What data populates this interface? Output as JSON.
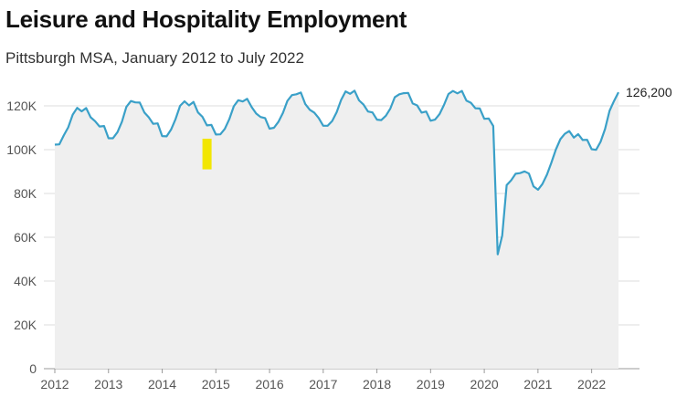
{
  "chart_data": {
    "type": "area",
    "title": "Leisure and Hospitality Employment",
    "subtitle": "Pittsburgh MSA, January 2012 to July 2022",
    "xlabel": "",
    "ylabel": "",
    "x_tick_labels": [
      "2012",
      "2013",
      "2014",
      "2015",
      "2016",
      "2017",
      "2018",
      "2019",
      "2020",
      "2021",
      "2022"
    ],
    "y_tick_labels": [
      "0",
      "20K",
      "40K",
      "60K",
      "80K",
      "100K",
      "120K"
    ],
    "ylim": [
      0,
      130000
    ],
    "xlim": [
      2012.0,
      2022.5
    ],
    "grid": "horizontal",
    "legend": "none",
    "line_color": "#3aa0c8",
    "area_color": "#efefef",
    "annotation_color": "#f2e600",
    "annotation_range": {
      "x": [
        2014.75,
        2014.92
      ],
      "y": [
        91000,
        105000
      ]
    },
    "end_label": "126,200",
    "series": [
      {
        "x": [
          2012.0,
          2012.083,
          2012.167,
          2012.25,
          2012.333,
          2012.417,
          2012.5,
          2012.583,
          2012.667,
          2012.75,
          2012.833,
          2012.917,
          2013.0,
          2013.083,
          2013.167,
          2013.25,
          2013.333,
          2013.417,
          2013.5,
          2013.583,
          2013.667,
          2013.75,
          2013.833,
          2013.917,
          2014.0,
          2014.083,
          2014.167,
          2014.25,
          2014.333,
          2014.417,
          2014.5,
          2014.583,
          2014.667,
          2014.75,
          2014.833,
          2014.917,
          2015.0,
          2015.083,
          2015.167,
          2015.25,
          2015.333,
          2015.417,
          2015.5,
          2015.583,
          2015.667,
          2015.75,
          2015.833,
          2015.917,
          2016.0,
          2016.083,
          2016.167,
          2016.25,
          2016.333,
          2016.417,
          2016.5,
          2016.583,
          2016.667,
          2016.75,
          2016.833,
          2016.917,
          2017.0,
          2017.083,
          2017.167,
          2017.25,
          2017.333,
          2017.417,
          2017.5,
          2017.583,
          2017.667,
          2017.75,
          2017.833,
          2017.917,
          2018.0,
          2018.083,
          2018.167,
          2018.25,
          2018.333,
          2018.417,
          2018.5,
          2018.583,
          2018.667,
          2018.75,
          2018.833,
          2018.917,
          2019.0,
          2019.083,
          2019.167,
          2019.25,
          2019.333,
          2019.417,
          2019.5,
          2019.583,
          2019.667,
          2019.75,
          2019.833,
          2019.917,
          2020.0,
          2020.083,
          2020.167,
          2020.25,
          2020.333,
          2020.417,
          2020.5,
          2020.583,
          2020.667,
          2020.75,
          2020.833,
          2020.917,
          2021.0,
          2021.083,
          2021.167,
          2021.25,
          2021.333,
          2021.417,
          2021.5,
          2021.583,
          2021.667,
          2021.75,
          2021.833,
          2021.917,
          2022.0,
          2022.083,
          2022.167,
          2022.25,
          2022.333,
          2022.417,
          2022.5
        ],
        "values": [
          102300,
          102400,
          106500,
          110200,
          116000,
          119100,
          117500,
          119000,
          114800,
          113000,
          110600,
          110800,
          105200,
          105200,
          108000,
          112800,
          119500,
          122200,
          121600,
          121500,
          117000,
          114800,
          111800,
          112000,
          106200,
          106100,
          109200,
          114000,
          120000,
          122100,
          120200,
          121800,
          117000,
          115000,
          111100,
          111300,
          106900,
          107000,
          109500,
          113900,
          119800,
          122600,
          122000,
          123200,
          119400,
          116500,
          114900,
          114400,
          109600,
          110000,
          112800,
          116800,
          122300,
          124900,
          125300,
          126100,
          120800,
          118200,
          116900,
          114400,
          110900,
          110900,
          113100,
          117100,
          122700,
          126600,
          125500,
          126900,
          122500,
          120600,
          117400,
          117000,
          113700,
          113500,
          115500,
          118800,
          123900,
          125300,
          125800,
          125900,
          121100,
          120200,
          116900,
          117400,
          113200,
          113700,
          116200,
          120400,
          125400,
          126800,
          125700,
          126800,
          122400,
          121400,
          118900,
          118800,
          114100,
          114200,
          110800,
          52200,
          60700,
          83800,
          86000,
          89000,
          89300,
          90100,
          89100,
          83200,
          81700,
          84300,
          88600,
          94000,
          100000,
          104800,
          107200,
          108500,
          105500,
          107100,
          104400,
          104500,
          100200,
          99900,
          103600,
          109400,
          117700,
          122200,
          126200
        ]
      }
    ]
  }
}
